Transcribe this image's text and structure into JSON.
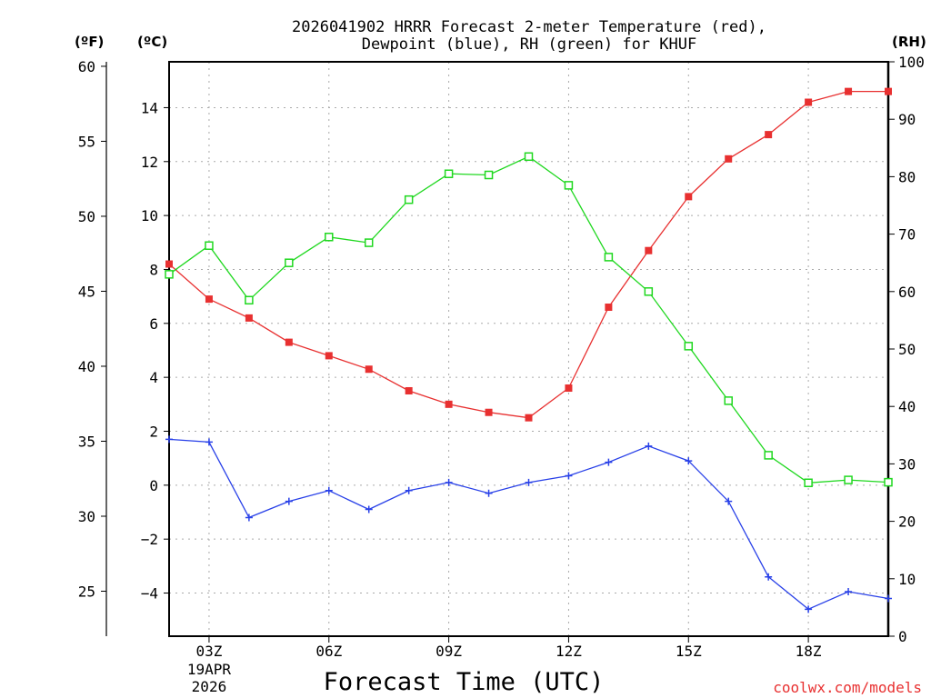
{
  "chart_data": {
    "type": "line",
    "title": "2026041902 HRRR Forecast 2-meter Temperature (red),",
    "subtitle": "Dewpoint (blue), RH (green) for KHUF",
    "xlabel": "Forecast Time (UTC)",
    "credit": "coolwx.com/models",
    "units": {
      "fahrenheit": "(ºF)",
      "celsius": "(ºC)",
      "rh": "(RH)"
    },
    "x_hours": [
      2,
      3,
      4,
      5,
      6,
      7,
      8,
      9,
      10,
      11,
      12,
      13,
      14,
      15,
      16,
      17,
      18,
      19,
      20
    ],
    "xlim": [
      2,
      20
    ],
    "x_ticks": [
      {
        "hour": 3,
        "label": "03Z",
        "sublabels": [
          "19APR",
          "2026"
        ]
      },
      {
        "hour": 6,
        "label": "06Z",
        "sublabels": []
      },
      {
        "hour": 9,
        "label": "09Z",
        "sublabels": []
      },
      {
        "hour": 12,
        "label": "12Z",
        "sublabels": []
      },
      {
        "hour": 15,
        "label": "15Z",
        "sublabels": []
      },
      {
        "hour": 18,
        "label": "18Z",
        "sublabels": []
      }
    ],
    "celsius_axis": {
      "ylim": [
        -5.6,
        15.7
      ],
      "ticks": [
        -4,
        -2,
        0,
        2,
        4,
        6,
        8,
        10,
        12,
        14
      ],
      "tick_labels": [
        "−4",
        "−2",
        "0",
        "2",
        "4",
        "6",
        "8",
        "10",
        "12",
        "14"
      ]
    },
    "fahrenheit_axis": {
      "ylim": [
        22.0,
        60.3
      ],
      "ticks": [
        25,
        30,
        35,
        40,
        45,
        50,
        55,
        60
      ],
      "tick_labels": [
        "25",
        "30",
        "35",
        "40",
        "45",
        "50",
        "55",
        "60"
      ]
    },
    "rh_axis": {
      "ylim": [
        0,
        100
      ],
      "ticks": [
        0,
        10,
        20,
        30,
        40,
        50,
        60,
        70,
        80,
        90,
        100
      ],
      "tick_labels": [
        "0",
        "10",
        "20",
        "30",
        "40",
        "50",
        "60",
        "70",
        "80",
        "90",
        "100"
      ]
    },
    "series": [
      {
        "name": "Temperature",
        "axis": "celsius",
        "color": "#e83030",
        "marker": "filled-square",
        "values": [
          8.2,
          6.9,
          6.2,
          5.3,
          4.8,
          4.3,
          3.5,
          3.0,
          2.7,
          2.5,
          3.6,
          6.6,
          8.7,
          10.7,
          12.1,
          13.0,
          14.2,
          14.6,
          14.6
        ]
      },
      {
        "name": "Dewpoint",
        "axis": "celsius",
        "color": "#2840e8",
        "marker": "plus",
        "values": [
          1.7,
          1.6,
          -1.2,
          -0.6,
          -0.2,
          -0.9,
          -0.2,
          0.1,
          -0.3,
          0.1,
          0.35,
          0.85,
          1.45,
          0.9,
          -0.6,
          -3.4,
          -4.6,
          -3.95,
          -4.2
        ]
      },
      {
        "name": "RH",
        "axis": "rh",
        "color": "#20d820",
        "marker": "open-square",
        "values": [
          63,
          68,
          58.5,
          65,
          69.5,
          68.5,
          76,
          80.5,
          80.3,
          83.5,
          78.5,
          66,
          60,
          50.5,
          41,
          31.5,
          26.7,
          27.2,
          26.8
        ]
      }
    ]
  }
}
